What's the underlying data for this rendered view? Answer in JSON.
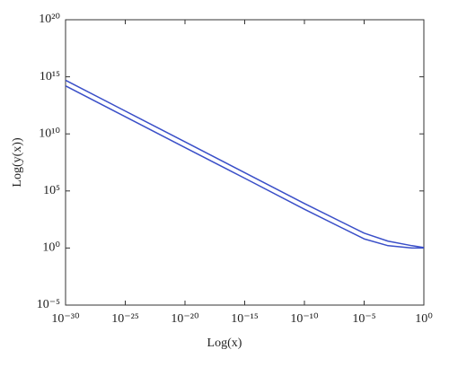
{
  "chart_data": {
    "type": "line",
    "xlabel": "Log(x)",
    "ylabel": "Log(y(x))",
    "xlog": true,
    "ylog": true,
    "x": [
      1e-30,
      1e-25,
      1e-20,
      1e-15,
      1e-10,
      1e-05,
      0.001,
      0.1,
      1
    ],
    "series": [
      {
        "color": "#3a4fc8",
        "values": [
          500000000000000.0,
          1000000000000.0,
          2000000000.0,
          4000000.0,
          7900.0,
          20,
          4,
          1.6,
          1.1
        ]
      },
      {
        "color": "#3a4fc8",
        "values": [
          160000000000000.0,
          320000000000.0,
          630000000.0,
          1300000.0,
          2500.0,
          6.3,
          1.6,
          1.0,
          1.0
        ]
      }
    ],
    "xlim": [
      1e-30,
      1
    ],
    "xticks": [
      {
        "value": 1e-30,
        "label": "10⁻³⁰"
      },
      {
        "value": 1e-25,
        "label": "10⁻²⁵"
      },
      {
        "value": 1e-20,
        "label": "10⁻²⁰"
      },
      {
        "value": 1e-15,
        "label": "10⁻¹⁵"
      },
      {
        "value": 1e-10,
        "label": "10⁻¹⁰"
      },
      {
        "value": 1e-05,
        "label": "10⁻⁵"
      },
      {
        "value": 1,
        "label": "10⁰"
      }
    ],
    "ylim": [
      1e-05,
      1e+20
    ],
    "yticks": [
      {
        "value": 1e-05,
        "label": "10⁻⁵"
      },
      {
        "value": 1,
        "label": "10⁰"
      },
      {
        "value": 100000.0,
        "label": "10⁵"
      },
      {
        "value": 10000000000.0,
        "label": "10¹⁰"
      },
      {
        "value": 1000000000000000.0,
        "label": "10¹⁵"
      },
      {
        "value": 1e+20,
        "label": "10²⁰"
      }
    ],
    "grid": false
  }
}
